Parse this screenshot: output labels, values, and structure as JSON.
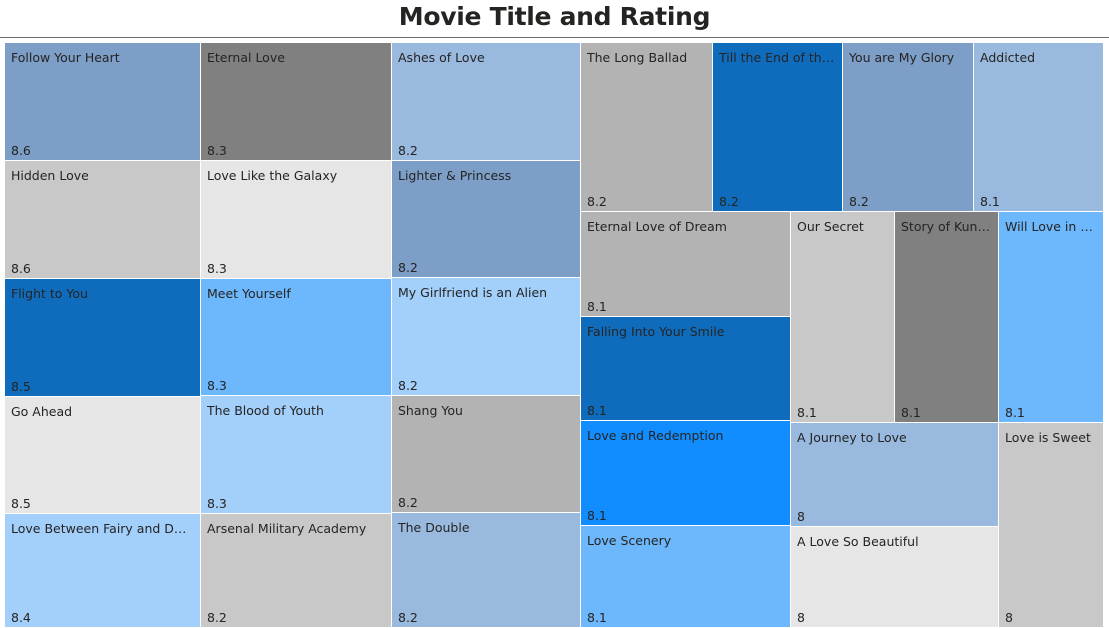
{
  "chart_data": {
    "type": "treemap",
    "title": "Movie Title and Rating",
    "items": [
      {
        "label": "Follow Your Heart",
        "display": "Follow Your Heart",
        "value": 8.6,
        "color": "#7d9ec7"
      },
      {
        "label": "Hidden Love",
        "display": "Hidden Love",
        "value": 8.6,
        "color": "#c8c8c8"
      },
      {
        "label": "Flight to You",
        "display": "Flight to You",
        "value": 8.5,
        "color": "#0f6cbd"
      },
      {
        "label": "Go Ahead",
        "display": "Go Ahead",
        "value": 8.5,
        "color": "#e6e6e6"
      },
      {
        "label": "Love Between Fairy and Devil",
        "display": "Love Between Fairy and Devil",
        "value": 8.4,
        "color": "#a3cffb"
      },
      {
        "label": "Eternal Love",
        "display": "Eternal Love",
        "value": 8.3,
        "color": "#808080"
      },
      {
        "label": "Love Like the Galaxy",
        "display": "Love Like the Galaxy",
        "value": 8.3,
        "color": "#e6e6e6"
      },
      {
        "label": "Meet Yourself",
        "display": "Meet Yourself",
        "value": 8.3,
        "color": "#6db7fc"
      },
      {
        "label": "The Blood of Youth",
        "display": "The Blood of Youth",
        "value": 8.3,
        "color": "#a3cffb"
      },
      {
        "label": "Arsenal Military Academy",
        "display": "Arsenal Military Academy",
        "value": 8.2,
        "color": "#c8c8c8"
      },
      {
        "label": "Ashes of Love",
        "display": "Ashes of Love",
        "value": 8.2,
        "color": "#99b9de"
      },
      {
        "label": "Lighter & Princess",
        "display": "Lighter & Princess",
        "value": 8.2,
        "color": "#7d9ec7"
      },
      {
        "label": "My Girlfriend is an Alien",
        "display": "My Girlfriend is an Alien",
        "value": 8.2,
        "color": "#a3cffb"
      },
      {
        "label": "Shang You",
        "display": "Shang You",
        "value": 8.2,
        "color": "#b3b3b3"
      },
      {
        "label": "The Double",
        "display": "The Double",
        "value": 8.2,
        "color": "#99b9de"
      },
      {
        "label": "The Long Ballad",
        "display": "The Long Ballad",
        "value": 8.2,
        "color": "#b3b3b3"
      },
      {
        "label": "Till the End of the ...",
        "display": "Till the End of the ...",
        "value": 8.2,
        "color": "#0f6cbd"
      },
      {
        "label": "You are My Glory",
        "display": "You are My Glory",
        "value": 8.2,
        "color": "#7d9ec7"
      },
      {
        "label": "Addicted",
        "display": "Addicted",
        "value": 8.1,
        "color": "#99b9de"
      },
      {
        "label": "Eternal Love of Dream",
        "display": "Eternal Love of Dream",
        "value": 8.1,
        "color": "#b3b3b3"
      },
      {
        "label": "Falling Into Your Smile",
        "display": "Falling Into Your Smile",
        "value": 8.1,
        "color": "#0f6cbd"
      },
      {
        "label": "Love and Redemption",
        "display": "Love and Redemption",
        "value": 8.1,
        "color": "#118dff"
      },
      {
        "label": "Love Scenery",
        "display": "Love Scenery",
        "value": 8.1,
        "color": "#6db7fc"
      },
      {
        "label": "Our Secret",
        "display": "Our Secret",
        "value": 8.1,
        "color": "#c8c8c8"
      },
      {
        "label": "Story of Kunni...",
        "display": "Story of Kunni...",
        "value": 8.1,
        "color": "#808080"
      },
      {
        "label": "Will Love in Sp...",
        "display": "Will Love in Sp...",
        "value": 8.1,
        "color": "#6db7fc"
      },
      {
        "label": "A Journey to Love",
        "display": "A Journey to Love",
        "value": 8,
        "color": "#99b9de"
      },
      {
        "label": "A Love So Beautiful",
        "display": "A Love So Beautiful",
        "value": 8,
        "color": "#e6e6e6"
      },
      {
        "label": "Love is Sweet",
        "display": "Love is Sweet",
        "value": 8,
        "color": "#c8c8c8"
      }
    ]
  }
}
